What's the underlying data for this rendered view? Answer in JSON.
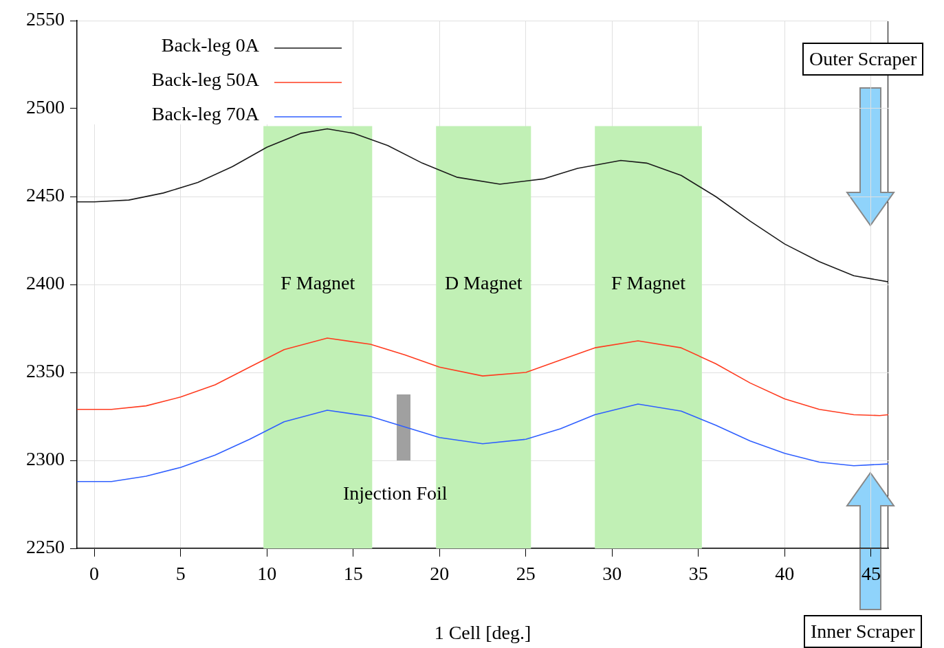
{
  "chart_data": {
    "type": "line",
    "xlabel": "1 Cell [deg.]",
    "xlim": [
      -1,
      46
    ],
    "xticks": [
      0,
      5,
      10,
      15,
      20,
      25,
      30,
      35,
      40,
      45
    ],
    "ylim": [
      2250,
      2550
    ],
    "yticks": [
      2250,
      2300,
      2350,
      2400,
      2450,
      2500,
      2550
    ],
    "grid": true,
    "legend": "top left",
    "marker": "none",
    "line_style": "solid",
    "series": [
      {
        "name": "Back-leg 0A",
        "color": "#1a1a1a",
        "x": [
          -1,
          0,
          2,
          4,
          6,
          8,
          10,
          12,
          13.5,
          15,
          17,
          19,
          21,
          23.5,
          26,
          28,
          30.5,
          32,
          34,
          36,
          38,
          40,
          42,
          44,
          46
        ],
        "values": [
          2447,
          2447,
          2448,
          2452,
          2458,
          2467,
          2478,
          2486,
          2488.5,
          2486,
          2479,
          2469,
          2461,
          2457,
          2460,
          2466,
          2470.5,
          2469,
          2462,
          2450,
          2436,
          2423,
          2413,
          2405,
          2401.5
        ]
      },
      {
        "name": "Back-leg 50A",
        "color": "#ff3b1f",
        "x": [
          -1,
          1,
          3,
          5,
          7,
          9,
          11,
          13.5,
          16,
          18,
          20,
          22.5,
          25,
          27,
          29,
          31.5,
          34,
          36,
          38,
          40,
          42,
          44,
          45.5,
          46
        ],
        "values": [
          2329,
          2329,
          2331,
          2336,
          2343,
          2353,
          2363,
          2369.5,
          2366,
          2360,
          2353,
          2348,
          2350,
          2357,
          2364,
          2368,
          2364,
          2355,
          2344,
          2335,
          2329,
          2326,
          2325.5,
          2326
        ]
      },
      {
        "name": "Back-leg 70A",
        "color": "#2f5fff",
        "x": [
          -1,
          1,
          3,
          5,
          7,
          9,
          11,
          13.5,
          16,
          17,
          19,
          20,
          22.5,
          25,
          27,
          29,
          31.5,
          34,
          36,
          38,
          40,
          42,
          44,
          46
        ],
        "values": [
          2288,
          2288,
          2291,
          2296,
          2303,
          2312,
          2322,
          2328.5,
          2325,
          2322,
          2316,
          2313,
          2309.5,
          2312,
          2318,
          2326,
          2332,
          2328,
          2320,
          2311,
          2304,
          2299,
          2297,
          2298
        ]
      }
    ],
    "bands": [
      {
        "axis": "x",
        "from": 9.8,
        "to": 16.1,
        "label": "F Magnet",
        "color": "#c1f0b5"
      },
      {
        "axis": "x",
        "from": 19.8,
        "to": 25.3,
        "label": "D Magnet",
        "color": "#c1f0b5"
      },
      {
        "axis": "x",
        "from": 29,
        "to": 35.2,
        "label": "F Magnet",
        "color": "#c1f0b5"
      }
    ],
    "annotations": [
      "Injection Foil",
      "Outer Scraper",
      "Inner Scraper"
    ]
  }
}
